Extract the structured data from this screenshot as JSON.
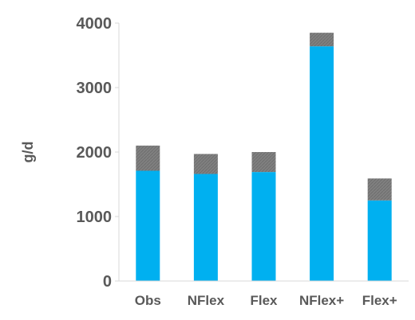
{
  "chart_data": {
    "type": "bar",
    "stacked": true,
    "categories": [
      "Obs",
      "NFlex",
      "Flex",
      "NFlex+",
      "Flex+"
    ],
    "series": [
      {
        "values": [
          1710,
          1660,
          1690,
          3640,
          1250
        ]
      },
      {
        "values": [
          390,
          310,
          310,
          210,
          340
        ]
      }
    ],
    "colors": [
      "#00b0f0",
      "#808080"
    ],
    "hatched_series": 1,
    "ylabel": "g/d",
    "ylim": [
      0,
      4000
    ],
    "yticks": [
      0,
      1000,
      2000,
      3000,
      4000
    ],
    "grid": false,
    "legend": "none"
  }
}
